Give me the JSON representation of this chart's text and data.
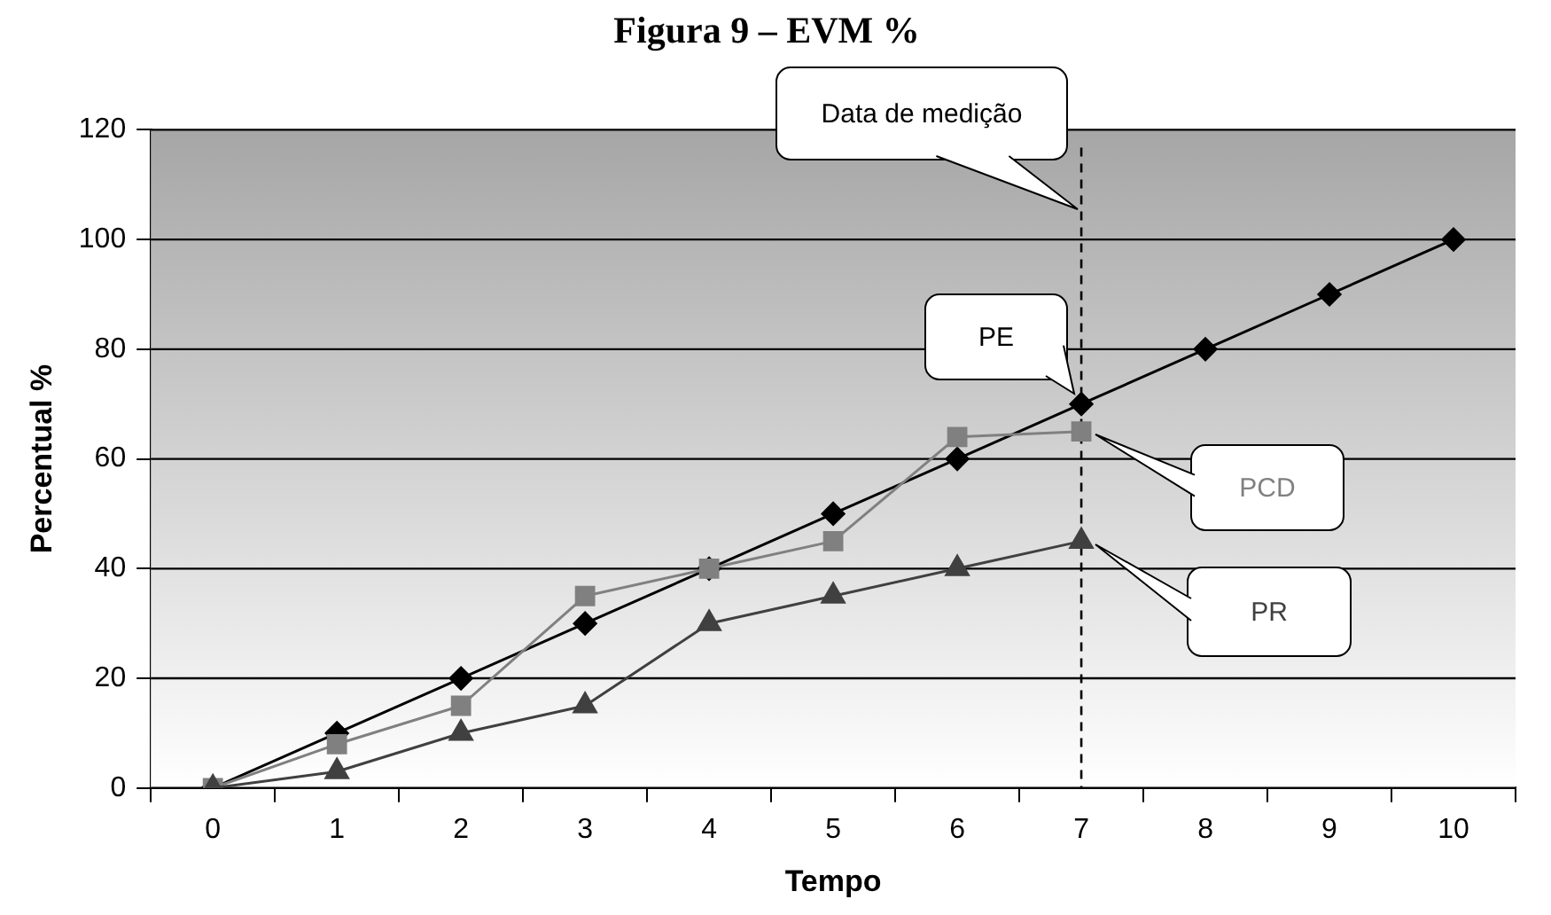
{
  "chart_data": {
    "type": "line",
    "title": "Figura 9 – EVM %",
    "xlabel": "Tempo",
    "ylabel": "Percentual %",
    "categories": [
      "0",
      "1",
      "2",
      "3",
      "4",
      "5",
      "6",
      "7",
      "8",
      "9",
      "10"
    ],
    "series": [
      {
        "name": "PE",
        "color": "#000000",
        "marker": "diamond",
        "values": [
          0,
          10,
          20,
          30,
          40,
          50,
          60,
          70,
          80,
          90,
          100
        ]
      },
      {
        "name": "PCD",
        "color": "#808080",
        "marker": "square",
        "values": [
          0,
          8,
          15,
          35,
          40,
          45,
          64,
          65,
          null,
          null,
          null
        ]
      },
      {
        "name": "PR",
        "color": "#404040",
        "marker": "triangle",
        "values": [
          0,
          3,
          10,
          15,
          30,
          35,
          40,
          45,
          null,
          null,
          null
        ]
      }
    ],
    "ylim": [
      0,
      120
    ],
    "yticks": [
      0,
      20,
      40,
      60,
      80,
      100,
      120
    ],
    "grid": "y",
    "legend": false,
    "line_style": "solid",
    "ref_lines": [
      {
        "axis": "x",
        "value": "7",
        "label": "Data de medição",
        "line_style": "dashed",
        "color": "#000000"
      }
    ]
  }
}
